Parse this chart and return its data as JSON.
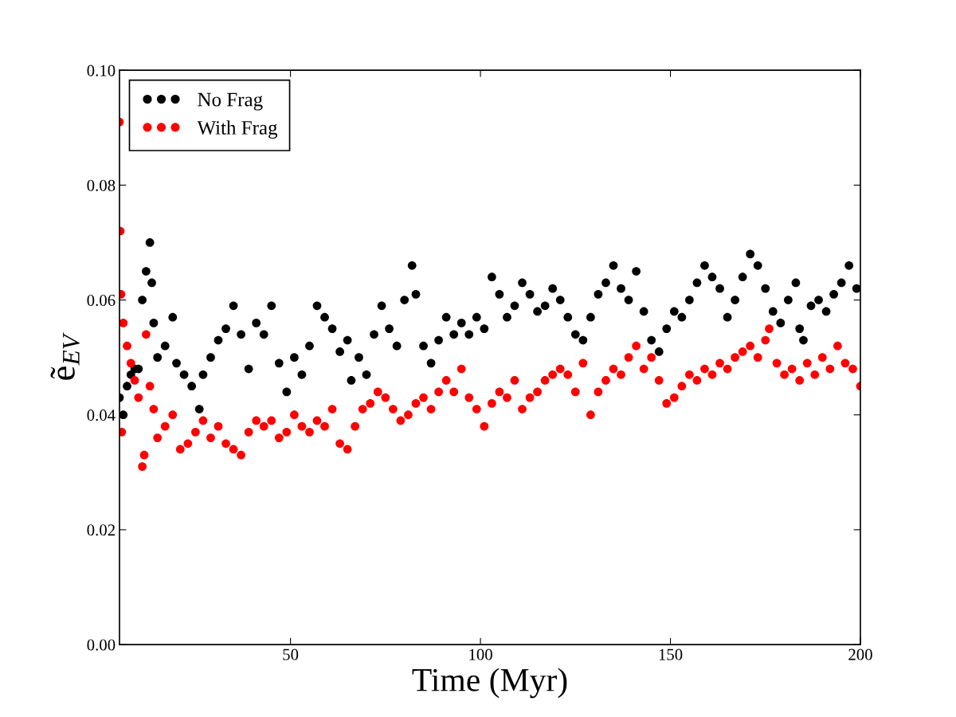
{
  "chart_data": {
    "type": "scatter",
    "xlabel": "Time (Myr)",
    "ylabel": "ẽ$_{EV}$",
    "xlim": [
      5,
      200
    ],
    "xticks": [
      50,
      100,
      150,
      200
    ],
    "ylim": [
      0,
      0.1
    ],
    "yticks": [
      {
        "value": 0,
        "label": "0.00"
      },
      {
        "value": 0.02,
        "label": "0.02"
      },
      {
        "value": 0.04,
        "label": "0.04"
      },
      {
        "value": 0.06,
        "label": "0.06"
      },
      {
        "value": 0.08,
        "label": "0.08"
      },
      {
        "value": 0.1,
        "label": "0.10"
      }
    ],
    "legend": "top left",
    "grid": false,
    "marker": "circle",
    "series": [
      {
        "name": "No Frag",
        "color": "#000000",
        "x": [
          5,
          6,
          7,
          8,
          9,
          10,
          11,
          12,
          13,
          13.5,
          14,
          15,
          17,
          19,
          20,
          22,
          24,
          26,
          27,
          29,
          31,
          33,
          35,
          37,
          39,
          41,
          43,
          45,
          47,
          49,
          51,
          53,
          55,
          57,
          59,
          61,
          63,
          65,
          66,
          68,
          70,
          72,
          74,
          76,
          78,
          80,
          82,
          83,
          85,
          87,
          89,
          91,
          93,
          95,
          97,
          99,
          101,
          103,
          105,
          107,
          109,
          111,
          113,
          115,
          117,
          119,
          121,
          123,
          125,
          127,
          129,
          131,
          133,
          135,
          137,
          139,
          141,
          143,
          145,
          147,
          149,
          151,
          153,
          155,
          157,
          159,
          161,
          163,
          165,
          167,
          169,
          171,
          173,
          175,
          177,
          179,
          181,
          183,
          184,
          185,
          187,
          189,
          191,
          193,
          195,
          197,
          199
        ],
        "values": [
          0.043,
          0.04,
          0.045,
          0.047,
          0.048,
          0.048,
          0.06,
          0.065,
          0.07,
          0.063,
          0.056,
          0.05,
          0.052,
          0.057,
          0.049,
          0.047,
          0.045,
          0.041,
          0.047,
          0.05,
          0.053,
          0.055,
          0.059,
          0.054,
          0.048,
          0.056,
          0.054,
          0.059,
          0.049,
          0.044,
          0.05,
          0.047,
          0.052,
          0.059,
          0.057,
          0.055,
          0.051,
          0.053,
          0.046,
          0.05,
          0.047,
          0.054,
          0.059,
          0.055,
          0.052,
          0.06,
          0.066,
          0.061,
          0.052,
          0.049,
          0.053,
          0.057,
          0.054,
          0.056,
          0.054,
          0.057,
          0.055,
          0.064,
          0.061,
          0.057,
          0.059,
          0.063,
          0.061,
          0.058,
          0.059,
          0.062,
          0.06,
          0.057,
          0.054,
          0.053,
          0.057,
          0.061,
          0.063,
          0.066,
          0.062,
          0.06,
          0.065,
          0.058,
          0.053,
          0.051,
          0.055,
          0.058,
          0.057,
          0.06,
          0.063,
          0.066,
          0.064,
          0.062,
          0.057,
          0.06,
          0.064,
          0.068,
          0.066,
          0.062,
          0.058,
          0.056,
          0.06,
          0.063,
          0.055,
          0.053,
          0.059,
          0.06,
          0.058,
          0.061,
          0.063,
          0.066,
          0.062
        ]
      },
      {
        "name": "With Frag",
        "color": "#ff0000",
        "x": [
          5,
          5.2,
          5.4,
          5.6,
          6,
          7,
          8,
          9,
          10,
          11,
          11.5,
          12,
          13,
          14,
          15,
          17,
          19,
          21,
          23,
          25,
          27,
          29,
          31,
          33,
          35,
          37,
          39,
          41,
          43,
          45,
          47,
          49,
          51,
          53,
          55,
          57,
          59,
          61,
          63,
          65,
          67,
          69,
          71,
          73,
          75,
          77,
          79,
          81,
          83,
          85,
          87,
          89,
          91,
          93,
          95,
          97,
          99,
          101,
          103,
          105,
          107,
          109,
          111,
          113,
          115,
          117,
          119,
          121,
          123,
          125,
          127,
          129,
          131,
          133,
          135,
          137,
          139,
          141,
          143,
          145,
          147,
          149,
          151,
          153,
          155,
          157,
          159,
          161,
          163,
          165,
          167,
          169,
          171,
          173,
          175,
          176,
          178,
          180,
          182,
          184,
          186,
          188,
          190,
          192,
          194,
          196,
          198,
          200
        ],
        "values": [
          0.091,
          0.072,
          0.061,
          0.037,
          0.056,
          0.052,
          0.049,
          0.046,
          0.043,
          0.031,
          0.033,
          0.054,
          0.045,
          0.041,
          0.036,
          0.038,
          0.04,
          0.034,
          0.035,
          0.037,
          0.039,
          0.036,
          0.038,
          0.035,
          0.034,
          0.033,
          0.037,
          0.039,
          0.038,
          0.039,
          0.036,
          0.037,
          0.04,
          0.038,
          0.037,
          0.039,
          0.038,
          0.041,
          0.035,
          0.034,
          0.038,
          0.041,
          0.042,
          0.044,
          0.043,
          0.041,
          0.039,
          0.04,
          0.042,
          0.043,
          0.041,
          0.044,
          0.046,
          0.044,
          0.048,
          0.043,
          0.041,
          0.038,
          0.042,
          0.044,
          0.043,
          0.046,
          0.041,
          0.043,
          0.044,
          0.046,
          0.047,
          0.048,
          0.047,
          0.044,
          0.049,
          0.04,
          0.044,
          0.046,
          0.048,
          0.047,
          0.05,
          0.052,
          0.048,
          0.05,
          0.046,
          0.042,
          0.043,
          0.045,
          0.047,
          0.046,
          0.048,
          0.047,
          0.049,
          0.048,
          0.05,
          0.051,
          0.052,
          0.05,
          0.053,
          0.055,
          0.049,
          0.047,
          0.048,
          0.046,
          0.049,
          0.047,
          0.05,
          0.048,
          0.052,
          0.049,
          0.048,
          0.045
        ]
      }
    ]
  }
}
